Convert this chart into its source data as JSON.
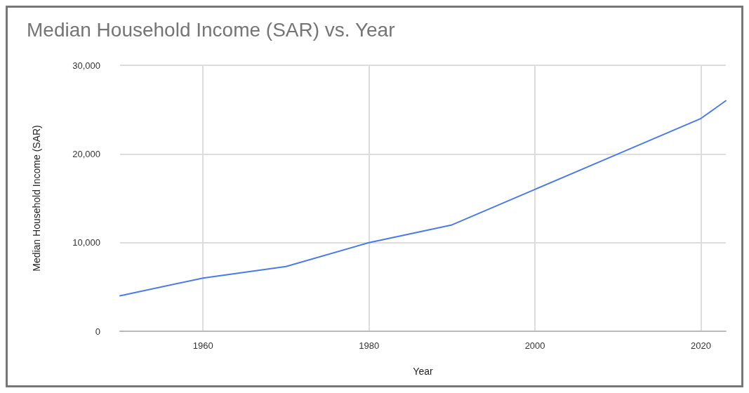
{
  "chart_data": {
    "type": "line",
    "title": "Median Household Income (SAR) vs. Year",
    "xlabel": "Year",
    "ylabel": "Median Household Income (SAR)",
    "x": [
      1950,
      1960,
      1970,
      1980,
      1990,
      2000,
      2010,
      2020,
      2023
    ],
    "series": [
      {
        "color": "#4a7be8",
        "values": [
          4000,
          6000,
          7300,
          10000,
          12000,
          16000,
          20000,
          24000,
          26000
        ]
      }
    ],
    "xlim": [
      1950,
      2023
    ],
    "xticks": [
      1960,
      1980,
      2000,
      2020
    ],
    "ylim": [
      0,
      30000
    ],
    "yticks": [
      {
        "value": 0,
        "label": "0"
      },
      {
        "value": 10000,
        "label": "10,000"
      },
      {
        "value": 20000,
        "label": "20,000"
      },
      {
        "value": 30000,
        "label": "30,000"
      }
    ],
    "grid": true,
    "marker": "none",
    "line_style": "solid"
  }
}
